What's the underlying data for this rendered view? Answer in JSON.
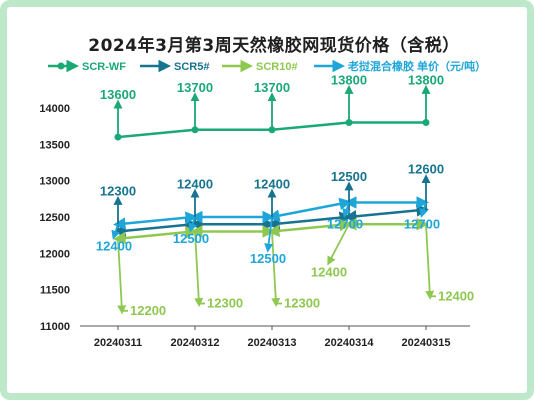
{
  "chart_data": {
    "type": "line",
    "title": "2024年3月第3周天然橡胶网现货价格（含税）",
    "categories": [
      "20240311",
      "20240312",
      "20240313",
      "20240314",
      "20240315"
    ],
    "ylim": [
      11000,
      14000
    ],
    "yticks": [
      11000,
      11500,
      12000,
      12500,
      13000,
      13500,
      14000
    ],
    "xlabel": "",
    "ylabel": "",
    "legend_position": "top",
    "grid": false,
    "series": [
      {
        "name": "SCR-WF",
        "color": "#1aa876",
        "values": [
          13600,
          13700,
          13700,
          13800,
          13800
        ],
        "label_placement": [
          "above",
          "above",
          "above",
          "above",
          "above"
        ]
      },
      {
        "name": "SCR5#",
        "color": "#17738f",
        "values": [
          12300,
          12400,
          12400,
          12500,
          12600
        ],
        "label_placement": [
          "above",
          "above",
          "above",
          "above",
          "above"
        ]
      },
      {
        "name": "SCR10#",
        "color": "#8fc850",
        "values": [
          12200,
          12300,
          12300,
          12400,
          12400
        ],
        "label_placement": [
          "below-right",
          "below-right",
          "below-right",
          "below",
          "below-right"
        ]
      },
      {
        "name": "老挝混合橡胶 单价（元/吨）",
        "color": "#1ea6d9",
        "values": [
          12400,
          12500,
          12500,
          12700,
          12700
        ],
        "label_placement": [
          "below",
          "below",
          "below",
          "below",
          "below"
        ]
      }
    ]
  }
}
